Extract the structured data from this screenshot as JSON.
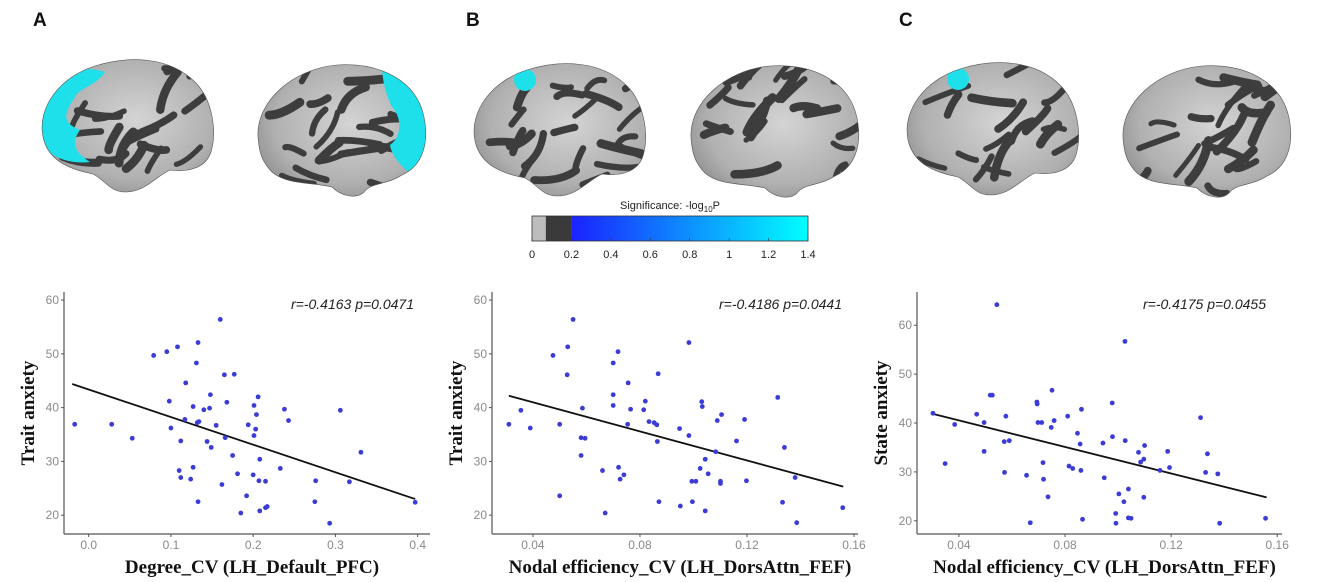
{
  "panels": [
    {
      "letter": "A"
    },
    {
      "letter": "B"
    },
    {
      "letter": "C"
    }
  ],
  "colorbar": {
    "title_prefix": "Significance: -log",
    "title_sub": "10",
    "title_suffix": "P",
    "range": [
      0,
      1.4
    ],
    "ticks": [
      "0",
      "0.2",
      "0.4",
      "0.6",
      "0.8",
      "1",
      "1.2",
      "1.4"
    ],
    "tick_values": [
      0,
      0.2,
      0.4,
      0.6,
      0.8,
      1.0,
      1.2,
      1.4
    ],
    "segments": [
      {
        "from": 0,
        "to": 0.07,
        "color": "#bdbdbd"
      },
      {
        "from": 0.07,
        "to": 0.2,
        "color": "#3a3a3a"
      }
    ],
    "gradient": {
      "from": 0.2,
      "to": 1.4,
      "start_color": "#1a22ff",
      "end_color": "#00ffff"
    }
  },
  "colors": {
    "point": "#3b3bd6",
    "line": "#111111",
    "highlight": "#1ee0ea",
    "sulci": "#3d3d3d",
    "gyri": "#b9b9b9",
    "axis": "#555555"
  },
  "chart_data": [
    {
      "type": "scatter",
      "panel": "A",
      "title": "",
      "annotation": "r=-0.4163 p=0.0471",
      "xlabel": "Degree_CV (LH_Default_PFC)",
      "ylabel": "Trait anxiety",
      "xlim": [
        -0.03,
        0.415
      ],
      "ylim": [
        16.5,
        61.5
      ],
      "xticks": [
        0.0,
        0.1,
        0.2,
        0.3,
        0.4
      ],
      "xtick_labels": [
        "0.0",
        "0.1",
        "0.2",
        "0.3",
        "0.4"
      ],
      "yticks": [
        20,
        30,
        40,
        50,
        60
      ],
      "ytick_labels": [
        "20",
        "30",
        "40",
        "50",
        "60"
      ],
      "grid": false,
      "fit_line": {
        "x": [
          -0.02,
          0.397
        ],
        "y": [
          44.4,
          23.0
        ]
      },
      "x": [
        -0.017,
        0.028,
        0.053,
        0.079,
        0.095,
        0.108,
        0.133,
        0.131,
        0.16,
        0.098,
        0.1,
        0.118,
        0.117,
        0.112,
        0.11,
        0.112,
        0.124,
        0.127,
        0.127,
        0.132,
        0.134,
        0.133,
        0.14,
        0.147,
        0.148,
        0.144,
        0.149,
        0.155,
        0.162,
        0.165,
        0.177,
        0.168,
        0.166,
        0.175,
        0.181,
        0.185,
        0.192,
        0.194,
        0.201,
        0.204,
        0.203,
        0.201,
        0.2,
        0.206,
        0.208,
        0.207,
        0.208,
        0.215,
        0.215,
        0.217,
        0.233,
        0.238,
        0.243,
        0.275,
        0.276,
        0.293,
        0.306,
        0.317,
        0.331,
        0.397
      ],
      "y": [
        36.9,
        36.9,
        34.3,
        49.7,
        50.4,
        51.3,
        52.1,
        48.3,
        56.4,
        41.2,
        36.2,
        44.6,
        37.8,
        33.8,
        28.3,
        27.0,
        26.7,
        28.9,
        40.2,
        37.2,
        37.4,
        22.5,
        39.6,
        39.9,
        42.4,
        33.7,
        32.6,
        36.7,
        25.7,
        46.1,
        46.2,
        41.0,
        34.4,
        31.1,
        27.7,
        20.4,
        23.6,
        36.8,
        40.4,
        38.7,
        36.0,
        34.8,
        27.5,
        42.0,
        30.4,
        26.4,
        20.8,
        26.3,
        21.4,
        21.6,
        28.7,
        39.7,
        37.6,
        22.5,
        26.4,
        18.5,
        39.5,
        26.2,
        31.7,
        22.4
      ]
    },
    {
      "type": "scatter",
      "panel": "B",
      "title": "",
      "annotation": "r=-0.4186 p=0.0441",
      "xlabel": "Nodal efficiency_CV (LH_DorsAttn_FEF)",
      "ylabel": "Trait anxiety",
      "xlim": [
        0.0247,
        0.1615
      ],
      "ylim": [
        16.5,
        61.5
      ],
      "xticks": [
        0.04,
        0.08,
        0.12,
        0.16
      ],
      "xtick_labels": [
        "0.04",
        "0.08",
        "0.12",
        "0.16"
      ],
      "yticks": [
        20,
        30,
        40,
        50,
        60
      ],
      "ytick_labels": [
        "20",
        "30",
        "40",
        "50",
        "60"
      ],
      "grid": false,
      "fit_line": {
        "x": [
          0.031,
          0.156
        ],
        "y": [
          42.2,
          25.3
        ]
      },
      "x": [
        0.031,
        0.0355,
        0.039,
        0.0475,
        0.05,
        0.05,
        0.0528,
        0.053,
        0.055,
        0.058,
        0.058,
        0.0585,
        0.0595,
        0.066,
        0.067,
        0.07,
        0.07,
        0.07,
        0.0718,
        0.072,
        0.0726,
        0.074,
        0.0756,
        0.0754,
        0.0765,
        0.0814,
        0.082,
        0.0834,
        0.0853,
        0.0863,
        0.0865,
        0.0868,
        0.0871,
        0.0948,
        0.0951,
        0.0983,
        0.0983,
        0.0994,
        0.0996,
        0.1009,
        0.1025,
        0.1031,
        0.1033,
        0.1044,
        0.1044,
        0.1055,
        0.1083,
        0.1089,
        0.1101,
        0.1101,
        0.1105,
        0.1161,
        0.1191,
        0.1198,
        0.1315,
        0.1333,
        0.134,
        0.138,
        0.1386,
        0.1558
      ],
      "y": [
        36.9,
        39.5,
        36.2,
        49.7,
        36.9,
        23.6,
        46.1,
        51.3,
        56.4,
        34.4,
        31.1,
        39.9,
        34.3,
        28.3,
        20.4,
        40.4,
        48.3,
        42.4,
        50.4,
        28.9,
        26.7,
        27.5,
        44.6,
        36.9,
        39.7,
        39.6,
        41.2,
        37.4,
        37.2,
        36.8,
        33.7,
        46.3,
        22.5,
        36.1,
        21.7,
        52.1,
        34.8,
        26.3,
        22.5,
        26.3,
        28.7,
        41.1,
        40.2,
        30.4,
        20.8,
        27.7,
        31.8,
        37.6,
        26.3,
        25.9,
        38.7,
        33.8,
        37.8,
        26.4,
        41.9,
        22.4,
        32.6,
        27.0,
        18.6,
        21.4
      ]
    },
    {
      "type": "scatter",
      "panel": "C",
      "title": "",
      "annotation": "r=-0.4175 p=0.0455",
      "xlabel": "Nodal efficiency_CV (LH_DorsAttn_FEF)",
      "ylabel": "State anxiety",
      "xlim": [
        0.0242,
        0.1618
      ],
      "ylim": [
        17.3,
        66.8
      ],
      "xticks": [
        0.04,
        0.08,
        0.12,
        0.16
      ],
      "xtick_labels": [
        "0.04",
        "0.08",
        "0.12",
        "0.16"
      ],
      "yticks": [
        20,
        30,
        40,
        50,
        60
      ],
      "ytick_labels": [
        "20",
        "30",
        "40",
        "50",
        "60"
      ],
      "grid": false,
      "fit_line": {
        "x": [
          0.03,
          0.156
        ],
        "y": [
          41.9,
          24.8
        ]
      },
      "x": [
        0.0302,
        0.0348,
        0.0384,
        0.0467,
        0.0495,
        0.0495,
        0.0518,
        0.0526,
        0.0543,
        0.0571,
        0.0572,
        0.0577,
        0.059,
        0.0655,
        0.0669,
        0.0694,
        0.0695,
        0.0698,
        0.0712,
        0.0717,
        0.0719,
        0.0736,
        0.0748,
        0.0751,
        0.0759,
        0.081,
        0.0815,
        0.0829,
        0.0847,
        0.0857,
        0.086,
        0.0862,
        0.0866,
        0.0943,
        0.0948,
        0.0978,
        0.0979,
        0.0991,
        0.0992,
        0.1003,
        0.1022,
        0.1026,
        0.1027,
        0.1039,
        0.1039,
        0.1049,
        0.1077,
        0.1085,
        0.1097,
        0.1097,
        0.11,
        0.1158,
        0.1187,
        0.1194,
        0.1311,
        0.133,
        0.1337,
        0.1376,
        0.1383,
        0.1556
      ],
      "y": [
        42.0,
        31.7,
        39.7,
        41.8,
        40.1,
        34.2,
        45.7,
        45.7,
        64.2,
        36.2,
        29.9,
        41.4,
        36.4,
        29.3,
        19.6,
        44.3,
        43.9,
        40.1,
        40.1,
        31.9,
        28.5,
        24.9,
        39.1,
        46.7,
        40.5,
        41.4,
        31.2,
        30.7,
        37.9,
        35.7,
        30.3,
        42.8,
        20.3,
        35.9,
        28.8,
        44.1,
        37.2,
        21.5,
        19.5,
        25.5,
        23.9,
        56.7,
        36.4,
        26.5,
        20.6,
        20.5,
        34.0,
        32.0,
        32.6,
        24.8,
        35.4,
        30.3,
        34.2,
        30.9,
        41.1,
        29.9,
        33.7,
        29.6,
        19.5,
        20.5
      ]
    }
  ]
}
